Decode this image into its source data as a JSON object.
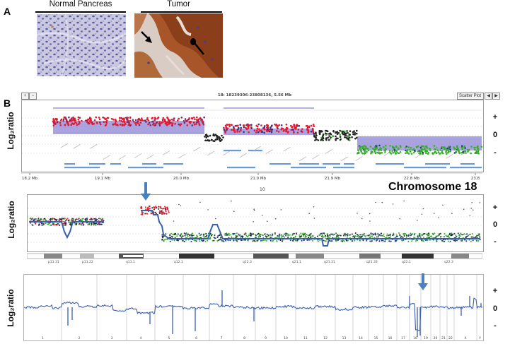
{
  "panel_a": {
    "letter": "A",
    "left_title": "Normal Pancreas",
    "right_title": "Tumor"
  },
  "panel_b": {
    "letter": "B",
    "y_label": "Log₂ratio",
    "ticks": [
      "+",
      "0",
      "-"
    ],
    "top_view": {
      "region_title": "18: 18239306-23808136, 5.56 Mb",
      "view_mode": "Scatter Plot",
      "axis_labels": [
        "18.2 Mb",
        "19.1 Mb",
        "20.0 Mb",
        "21.0 Mb",
        "21.9 Mb",
        "22.8 Mb",
        "23.8"
      ]
    },
    "chromosome_view": {
      "title": "Chromosome 18",
      "scale_label": "10",
      "band_labels": [
        "p11.31",
        "p11.22",
        "q11.1",
        "q12.1",
        "q12.3",
        "q21.1",
        "q21.31",
        "q21.33",
        "q22.1",
        "q22.3"
      ]
    },
    "genome_view": {
      "chromosomes": [
        "1",
        "2",
        "3",
        "4",
        "5",
        "6",
        "7",
        "8",
        "9",
        "10",
        "11",
        "12",
        "13",
        "14",
        "15",
        "16",
        "17",
        "18",
        "19",
        "20",
        "21",
        "22",
        "X",
        "Y"
      ]
    }
  },
  "colors": {
    "gain": "#e8192c",
    "loss": "#3aae2a",
    "neutral": "#222222",
    "segment": "#3a5fae",
    "arrow": "#4a7fc0",
    "shade": "#8c86d6"
  }
}
